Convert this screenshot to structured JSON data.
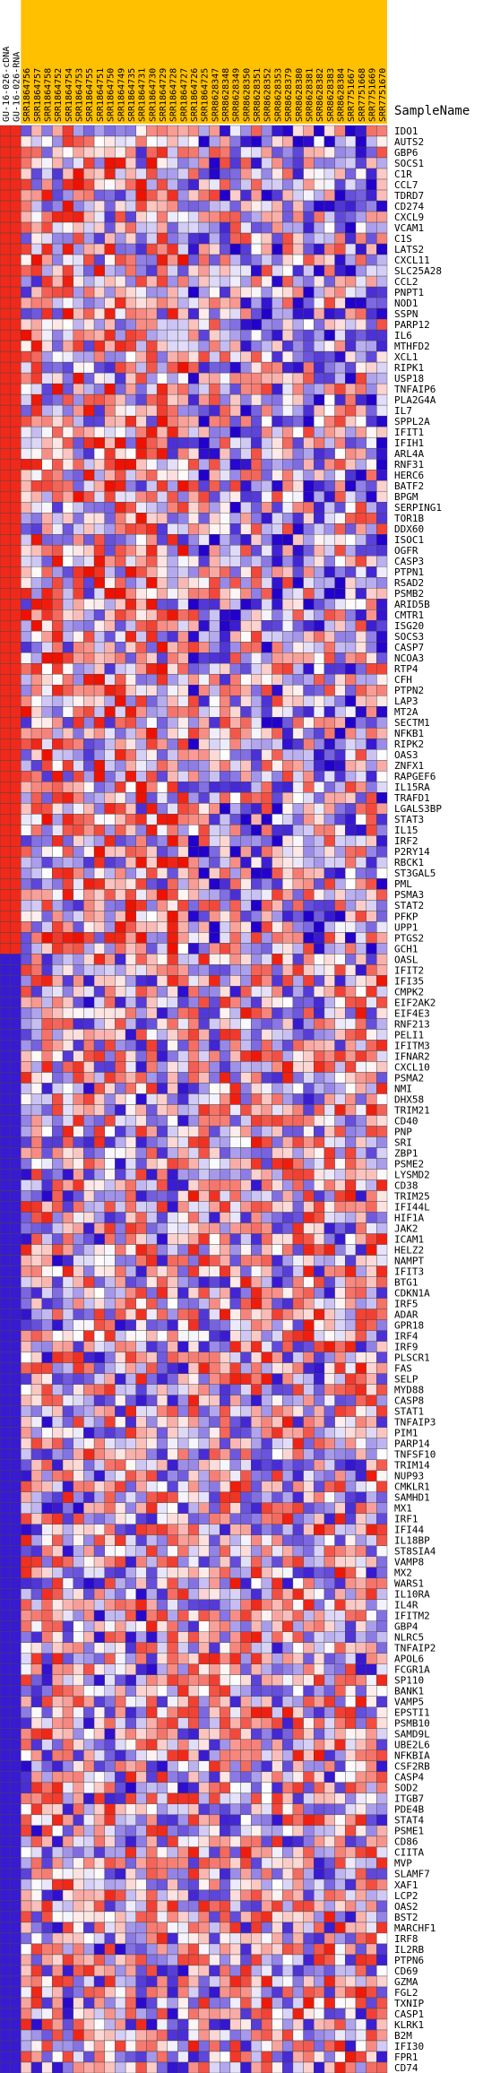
{
  "chart_data": {
    "type": "heatmap",
    "row_header": "SampleName",
    "column_header_color": "#ffc000",
    "ref_columns": [
      "GU-16-026-cDNA",
      "GU-16-026-RNA"
    ],
    "columns": [
      "SRR1864756",
      "SRR1864757",
      "SRR1864758",
      "SRR1864752",
      "SRR1864754",
      "SRR1864753",
      "SRR1864755",
      "SRR1864751",
      "SRR1864750",
      "SRR1864749",
      "SRR1864735",
      "SRR1864731",
      "SRR1864730",
      "SRR1864729",
      "SRR1864728",
      "SRR1864727",
      "SRR1864726",
      "SRR1864725",
      "SRR8628347",
      "SRR8628348",
      "SRR8628349",
      "SRR8628350",
      "SRR8628351",
      "SRR8628352",
      "SRR8628353",
      "SRR8628379",
      "SRR8628380",
      "SRR8628381",
      "SRR8628382",
      "SRR8628383",
      "SRR8628384",
      "SRR7751667",
      "SRR7751668",
      "SRR7751669",
      "SRR7751670"
    ],
    "rows": [
      "IDO1",
      "AUTS2",
      "GBP6",
      "SOCS1",
      "C1R",
      "CCL7",
      "TDRD7",
      "CD274",
      "CXCL9",
      "VCAM1",
      "C1S",
      "LATS2",
      "CXCL11",
      "SLC25A28",
      "CCL2",
      "PNPT1",
      "NOD1",
      "SSPN",
      "PARP12",
      "IL6",
      "MTHFD2",
      "XCL1",
      "RIPK1",
      "USP18",
      "TNFAIP6",
      "PLA2G4A",
      "IL7",
      "SPPL2A",
      "IFIT1",
      "IFIH1",
      "ARL4A",
      "RNF31",
      "HERC6",
      "BATF2",
      "BPGM",
      "SERPING1",
      "TOR1B",
      "DDX60",
      "ISOC1",
      "OGFR",
      "CASP3",
      "PTPN1",
      "RSAD2",
      "PSMB2",
      "ARID5B",
      "CMTR1",
      "ISG20",
      "SOCS3",
      "CASP7",
      "NCOA3",
      "RTP4",
      "CFH",
      "PTPN2",
      "LAP3",
      "MT2A",
      "SECTM1",
      "NFKB1",
      "RIPK2",
      "OAS3",
      "ZNFX1",
      "RAPGEF6",
      "IL15RA",
      "TRAFD1",
      "LGALS3BP",
      "STAT3",
      "IL15",
      "IRF2",
      "P2RY14",
      "RBCK1",
      "ST3GAL5",
      "PML",
      "PSMA3",
      "STAT2",
      "PFKP",
      "UPP1",
      "PTGS2",
      "GCH1",
      "OASL",
      "IFIT2",
      "IFI35",
      "CMPK2",
      "EIF2AK2",
      "EIF4E3",
      "RNF213",
      "PELI1",
      "IFITM3",
      "IFNAR2",
      "CXCL10",
      "PSMA2",
      "NMI",
      "DHX58",
      "TRIM21",
      "CD40",
      "PNP",
      "SRI",
      "ZBP1",
      "PSME2",
      "LYSMD2",
      "CD38",
      "TRIM25",
      "IFI44L",
      "HIF1A",
      "JAK2",
      "ICAM1",
      "HELZ2",
      "NAMPT",
      "IFIT3",
      "BTG1",
      "CDKN1A",
      "IRF5",
      "ADAR",
      "GPR18",
      "IRF4",
      "IRF9",
      "PLSCR1",
      "FAS",
      "SELP",
      "MYD88",
      "CASP8",
      "STAT1",
      "TNFAIP3",
      "PIM1",
      "PARP14",
      "TNFSF10",
      "TRIM14",
      "NUP93",
      "CMKLR1",
      "SAMHD1",
      "MX1",
      "IRF1",
      "IFI44",
      "IL18BP",
      "ST8SIA4",
      "VAMP8",
      "MX2",
      "WARS1",
      "IL10RA",
      "IL4R",
      "IFITM2",
      "GBP4",
      "NLRC5",
      "TNFAIP2",
      "APOL6",
      "FCGR1A",
      "SP110",
      "BANK1",
      "VAMP5",
      "EPSTI1",
      "PSMB10",
      "SAMD9L",
      "UBE2L6",
      "NFKBIA",
      "CSF2RB",
      "CASP4",
      "SOD2",
      "ITGB7",
      "PDE4B",
      "STAT4",
      "PSME1",
      "CD86",
      "CIITA",
      "MVP",
      "SLAMF7",
      "XAF1",
      "LCP2",
      "OAS2",
      "BST2",
      "MARCHF1",
      "IRF8",
      "IL2RB",
      "PTPN6",
      "CD69",
      "GZMA",
      "FGL2",
      "TXNIP",
      "CASP1",
      "KLRK1",
      "B2M",
      "IFI30",
      "FPR1",
      "CD74"
    ],
    "palette": {
      "low": "#2200cc",
      "mid": "#ffffff",
      "high": "#ee1100"
    },
    "grid": true,
    "legend": "none"
  }
}
